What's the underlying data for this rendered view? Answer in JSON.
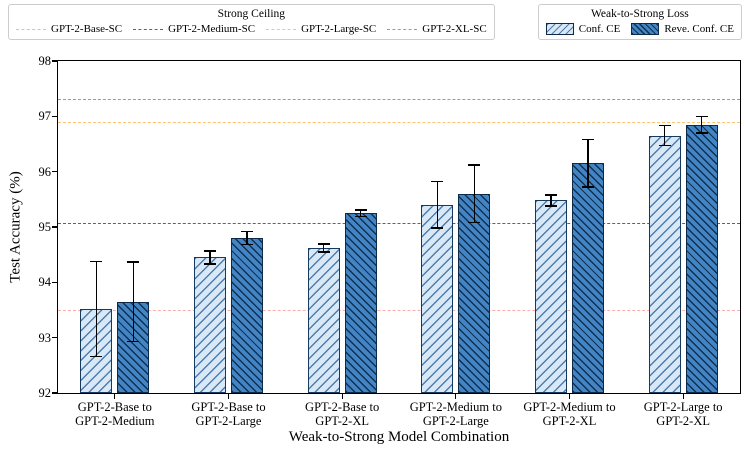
{
  "legend_titles_note": "see chart_data.legend_titles",
  "chart_data": {
    "type": "bar",
    "title": "",
    "xlabel": "Weak-to-Strong Model Combination",
    "ylabel": "Test Accuracy (%)",
    "ylim": [
      92,
      98
    ],
    "yticks": [
      92,
      93,
      94,
      95,
      96,
      97,
      98
    ],
    "grid": false,
    "legend_position": "top",
    "legend_titles": {
      "ceiling": "Strong Ceiling",
      "loss": "Weak-to-Strong Loss"
    },
    "categories": [
      [
        "GPT-2-Base to",
        "GPT-2-Medium"
      ],
      [
        "GPT-2-Base to",
        "GPT-2-Large"
      ],
      [
        "GPT-2-Base to",
        "GPT-2-XL"
      ],
      [
        "GPT-2-Medium to",
        "GPT-2-Large"
      ],
      [
        "GPT-2-Medium to",
        "GPT-2-XL"
      ],
      [
        "GPT-2-Large to",
        "GPT-2-XL"
      ]
    ],
    "series": [
      {
        "name": "Conf. CE",
        "style": "conf",
        "fill": "#d9e8f6",
        "hatch": "/",
        "values": [
          93.52,
          94.45,
          94.62,
          95.4,
          95.48,
          96.65
        ],
        "errors": [
          0.86,
          0.12,
          0.07,
          0.42,
          0.1,
          0.18
        ]
      },
      {
        "name": "Reve. Conf. CE",
        "style": "reve",
        "fill": "#4284c4",
        "hatch": "\\",
        "values": [
          93.65,
          94.8,
          95.25,
          95.6,
          96.15,
          96.85
        ],
        "errors": [
          0.72,
          0.12,
          0.06,
          0.52,
          0.43,
          0.15
        ]
      }
    ],
    "ceilings": [
      {
        "label": "GPT-2-Base-SC",
        "value": 93.5,
        "color": "#ffabab"
      },
      {
        "label": "GPT-2-Medium-SC",
        "value": 95.08,
        "color": "#e32b2b"
      },
      {
        "label": "GPT-2-Large-SC",
        "value": 96.9,
        "color": "#ffc46b"
      },
      {
        "label": "GPT-2-XL-SC",
        "value": 97.32,
        "color": "#f08c00"
      }
    ]
  }
}
